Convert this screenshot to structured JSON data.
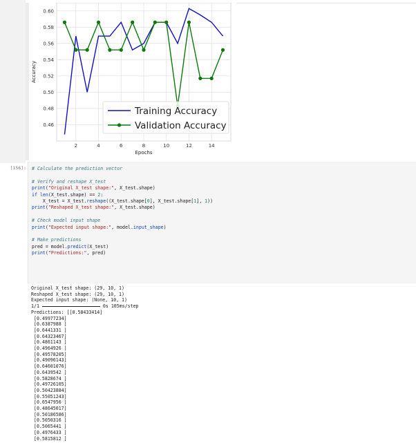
{
  "chart_data": {
    "type": "line",
    "xlabel": "Epochs",
    "ylabel": "Accuracy",
    "xlim": [
      0.3,
      15.7
    ],
    "ylim": [
      0.44,
      0.61
    ],
    "xticks": [
      2,
      4,
      6,
      8,
      10,
      12,
      14
    ],
    "yticks": [
      0.46,
      0.48,
      0.5,
      0.52,
      0.54,
      0.56,
      0.58,
      0.6
    ],
    "grid": true,
    "legend_position": "lower-right",
    "series": [
      {
        "name": "Training Accuracy",
        "color": "#1010c8",
        "marker": "none",
        "x": [
          1,
          2,
          3,
          4,
          5,
          6,
          7,
          8,
          9,
          10,
          11,
          12,
          13,
          14,
          15
        ],
        "y": [
          0.448,
          0.569,
          0.5,
          0.569,
          0.569,
          0.586,
          0.552,
          0.56,
          0.586,
          0.586,
          0.56,
          0.603,
          0.595,
          0.586,
          0.569
        ]
      },
      {
        "name": "Validation Accuracy",
        "color": "#0a7a0a",
        "marker": "circle",
        "x": [
          1,
          2,
          3,
          4,
          5,
          6,
          7,
          8,
          9,
          10,
          11,
          12,
          13,
          14,
          15
        ],
        "y": [
          0.586,
          0.552,
          0.552,
          0.586,
          0.552,
          0.552,
          0.586,
          0.552,
          0.586,
          0.586,
          0.483,
          0.586,
          0.517,
          0.517,
          0.552
        ]
      }
    ]
  },
  "cell": {
    "prompt": "[156]:",
    "code_lines": [
      [
        {
          "t": "# Calculate the prediction vector",
          "c": "cm"
        }
      ],
      [],
      [
        {
          "t": "# Verify and reshape X_test",
          "c": "cm"
        }
      ],
      [
        {
          "t": "print",
          "c": "fn"
        },
        {
          "t": "(",
          "c": ""
        },
        {
          "t": "\"Original X_test shape:\"",
          "c": "str"
        },
        {
          "t": ", X_test.shape)",
          "c": ""
        }
      ],
      [
        {
          "t": "if",
          "c": "kw"
        },
        {
          "t": " ",
          "c": ""
        },
        {
          "t": "len",
          "c": "fn"
        },
        {
          "t": "(X_test.shape) == ",
          "c": ""
        },
        {
          "t": "2",
          "c": "num"
        },
        {
          "t": ":",
          "c": ""
        }
      ],
      [
        {
          "t": "    X_test = X_test.",
          "c": ""
        },
        {
          "t": "reshape",
          "c": "fn"
        },
        {
          "t": "((X_test.shape[",
          "c": ""
        },
        {
          "t": "0",
          "c": "num"
        },
        {
          "t": "], X_test.shape[",
          "c": ""
        },
        {
          "t": "1",
          "c": "num"
        },
        {
          "t": "], ",
          "c": ""
        },
        {
          "t": "1",
          "c": "num"
        },
        {
          "t": "))",
          "c": ""
        }
      ],
      [
        {
          "t": "print",
          "c": "fn"
        },
        {
          "t": "(",
          "c": ""
        },
        {
          "t": "\"Reshaped X_test shape:\"",
          "c": "str"
        },
        {
          "t": ", X_test.shape)",
          "c": ""
        }
      ],
      [],
      [
        {
          "t": "# Check model input shape",
          "c": "cm"
        }
      ],
      [
        {
          "t": "print",
          "c": "fn"
        },
        {
          "t": "(",
          "c": ""
        },
        {
          "t": "\"Expected input shape:\"",
          "c": "str"
        },
        {
          "t": ", model.",
          "c": ""
        },
        {
          "t": "input_shape",
          "c": "fn"
        },
        {
          "t": ")",
          "c": ""
        }
      ],
      [],
      [
        {
          "t": "# Make predictions",
          "c": "cm"
        }
      ],
      [
        {
          "t": "pred = model.",
          "c": ""
        },
        {
          "t": "predict",
          "c": "fn"
        },
        {
          "t": "(X_test)",
          "c": ""
        }
      ],
      [
        {
          "t": "print",
          "c": "fn"
        },
        {
          "t": "(",
          "c": ""
        },
        {
          "t": "\"Predictions:\"",
          "c": "str"
        },
        {
          "t": ", pred)",
          "c": ""
        }
      ]
    ]
  },
  "output": {
    "lines_before": [
      "Original X_test shape: (29, 10, 1)",
      "Reshaped X_test shape: (29, 10, 1)",
      "Expected input shape: (None, 10, 1)"
    ],
    "progress_left": "1/1",
    "progress_value": 1.0,
    "progress_right": "0s 105ms/step",
    "predictions_header": "Predictions: [[0.58433414]",
    "prediction_rows": [
      " [0.49977234]",
      " [0.6387988 ]",
      " [0.6441331 ]",
      " [0.64323467]",
      " [0.4861143 ]",
      " [0.4964926 ]",
      " [0.49578205]",
      " [0.49096143]",
      " [0.64601076]",
      " [0.6439542 ]",
      " [0.5828674 ]",
      " [0.49726105]",
      " [0.50423884]",
      " [0.55051243]",
      " [0.6547956 ]",
      " [0.48645017]",
      " [0.50186586]",
      " [0.5050316 ]",
      " [0.5065441 ]",
      " [0.4976433 ]",
      " [0.5815812 ]"
    ]
  }
}
